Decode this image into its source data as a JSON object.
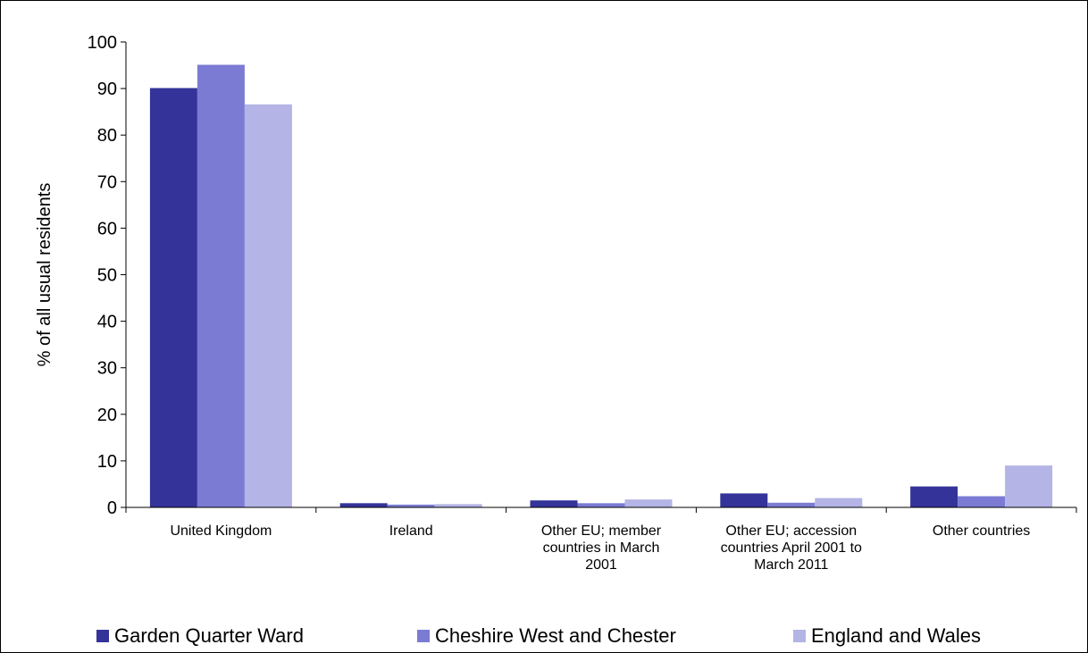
{
  "chart_data": {
    "type": "bar",
    "ylabel": "% of all usual residents",
    "xlabel": "",
    "ylim": [
      0,
      100
    ],
    "yticks": [
      0,
      10,
      20,
      30,
      40,
      50,
      60,
      70,
      80,
      90,
      100
    ],
    "grid": false,
    "legend_position": "bottom",
    "categories": [
      "United Kingdom",
      "Ireland",
      "Other EU; member countries in March 2001",
      "Other EU; accession countries April 2001 to March 2011",
      "Other countries"
    ],
    "category_lines": [
      [
        "United Kingdom"
      ],
      [
        "Ireland"
      ],
      [
        "Other EU; member",
        "countries in March",
        "2001"
      ],
      [
        "Other EU; accession",
        "countries April 2001 to",
        "March 2011"
      ],
      [
        "Other countries"
      ]
    ],
    "series": [
      {
        "name": "Garden Quarter Ward",
        "color": "#333399",
        "values": [
          90.1,
          0.9,
          1.5,
          3.0,
          4.5
        ]
      },
      {
        "name": "Cheshire West and Chester",
        "color": "#7B7BD4",
        "values": [
          95.1,
          0.6,
          0.9,
          1.0,
          2.4
        ]
      },
      {
        "name": "England and Wales",
        "color": "#B4B4E6",
        "values": [
          86.6,
          0.7,
          1.7,
          2.0,
          9.0
        ]
      }
    ]
  }
}
